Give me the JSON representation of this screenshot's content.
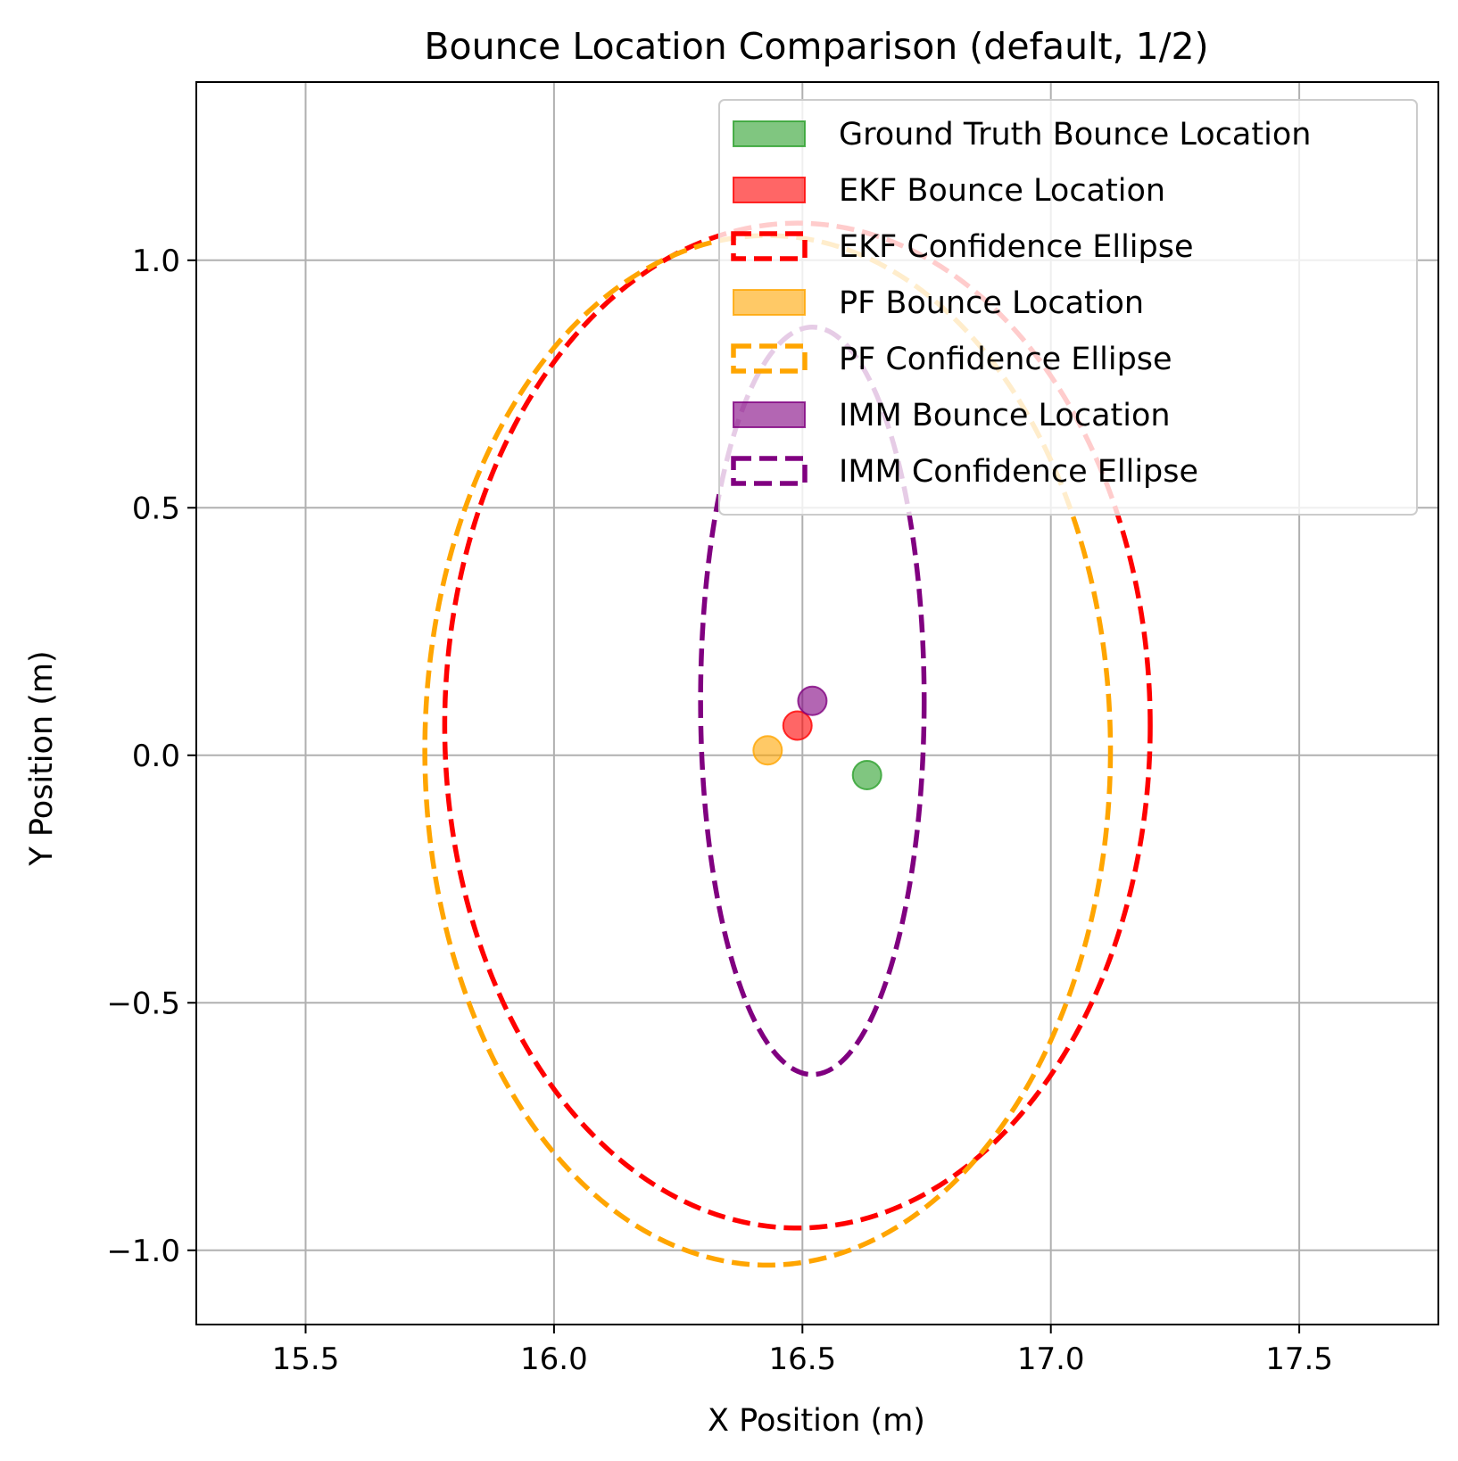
{
  "chart_data": {
    "type": "scatter",
    "title": "Bounce Location Comparison (default, 1/2)",
    "xlabel": "X Position (m)",
    "ylabel": "Y Position (m)",
    "xlim": [
      15.28,
      17.78
    ],
    "ylim": [
      -1.15,
      1.36
    ],
    "xticks": [
      15.5,
      16.0,
      16.5,
      17.0,
      17.5
    ],
    "xtick_labels": [
      "15.5",
      "16.0",
      "16.5",
      "17.0",
      "17.5"
    ],
    "yticks": [
      1.0,
      0.5,
      0.0,
      -0.5,
      -1.0
    ],
    "ytick_labels": [
      "1.0",
      "0.5",
      "0.0",
      "−0.5",
      "−1.0"
    ],
    "grid": true,
    "legend_position": "top-right",
    "points": [
      {
        "name": "Ground Truth Bounce Location",
        "x": 16.63,
        "y": -0.04,
        "color": "#2ca02c"
      },
      {
        "name": "EKF Bounce Location",
        "x": 16.49,
        "y": 0.06,
        "color": "#ff0000"
      },
      {
        "name": "PF Bounce Location",
        "x": 16.43,
        "y": 0.01,
        "color": "#ffa500"
      },
      {
        "name": "IMM Bounce Location",
        "x": 16.52,
        "y": 0.11,
        "color": "#800080"
      }
    ],
    "ellipses": [
      {
        "name": "EKF Confidence Ellipse",
        "cx": 16.49,
        "cy": 0.06,
        "rx": 0.71,
        "ry": 1.015,
        "color": "#ff0000"
      },
      {
        "name": "PF Confidence Ellipse",
        "cx": 16.43,
        "cy": 0.01,
        "rx": 0.69,
        "ry": 1.04,
        "color": "#ffa500"
      },
      {
        "name": "IMM Confidence Ellipse",
        "cx": 16.52,
        "cy": 0.11,
        "rx": 0.225,
        "ry": 0.755,
        "color": "#800080"
      }
    ],
    "legend": [
      {
        "label": "Ground Truth Bounce Location",
        "kind": "patch",
        "color": "#2ca02c"
      },
      {
        "label": "EKF Bounce Location",
        "kind": "patch",
        "color": "#ff0000"
      },
      {
        "label": "EKF Confidence Ellipse",
        "kind": "dashed",
        "color": "#ff0000"
      },
      {
        "label": "PF Bounce Location",
        "kind": "patch",
        "color": "#ffa500"
      },
      {
        "label": "PF Confidence Ellipse",
        "kind": "dashed",
        "color": "#ffa500"
      },
      {
        "label": "IMM Bounce Location",
        "kind": "patch",
        "color": "#800080"
      },
      {
        "label": "IMM Confidence Ellipse",
        "kind": "dashed",
        "color": "#800080"
      }
    ]
  }
}
